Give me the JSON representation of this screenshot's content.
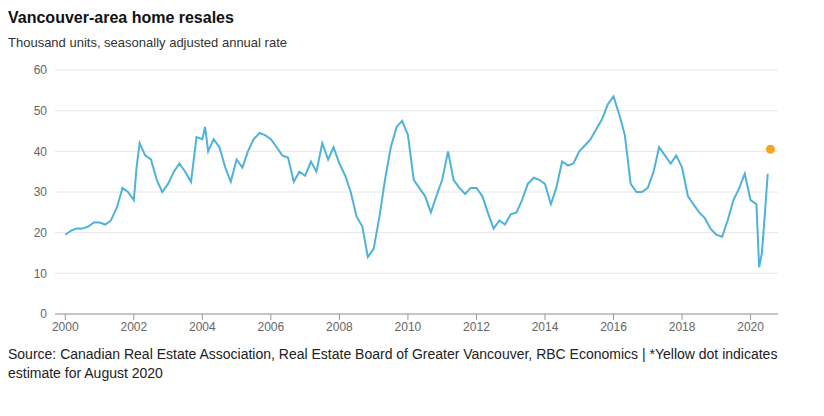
{
  "chart_data": {
    "type": "line",
    "title": "Vancouver-area home resales",
    "subtitle": "Thousand units, seasonally adjusted annual rate",
    "source": "Source: Canadian Real Estate Association, Real Estate Board of Greater Vancouver, RBC Economics | *Yellow dot indicates estimate for August 2020",
    "x": [
      2000.0,
      2000.17,
      2000.33,
      2000.5,
      2000.67,
      2000.83,
      2001.0,
      2001.17,
      2001.33,
      2001.5,
      2001.67,
      2001.83,
      2002.0,
      2002.08,
      2002.17,
      2002.33,
      2002.5,
      2002.67,
      2002.83,
      2003.0,
      2003.17,
      2003.33,
      2003.5,
      2003.67,
      2003.83,
      2004.0,
      2004.08,
      2004.17,
      2004.33,
      2004.5,
      2004.67,
      2004.83,
      2005.0,
      2005.17,
      2005.33,
      2005.5,
      2005.67,
      2005.83,
      2006.0,
      2006.17,
      2006.33,
      2006.5,
      2006.67,
      2006.83,
      2007.0,
      2007.17,
      2007.33,
      2007.5,
      2007.67,
      2007.83,
      2008.0,
      2008.17,
      2008.33,
      2008.5,
      2008.67,
      2008.83,
      2009.0,
      2009.17,
      2009.33,
      2009.5,
      2009.67,
      2009.83,
      2010.0,
      2010.17,
      2010.33,
      2010.5,
      2010.67,
      2010.83,
      2011.0,
      2011.17,
      2011.33,
      2011.5,
      2011.67,
      2011.83,
      2012.0,
      2012.17,
      2012.33,
      2012.5,
      2012.67,
      2012.83,
      2013.0,
      2013.17,
      2013.33,
      2013.5,
      2013.67,
      2013.83,
      2014.0,
      2014.17,
      2014.33,
      2014.5,
      2014.67,
      2014.83,
      2015.0,
      2015.17,
      2015.33,
      2015.5,
      2015.67,
      2015.83,
      2016.0,
      2016.17,
      2016.33,
      2016.5,
      2016.67,
      2016.83,
      2017.0,
      2017.17,
      2017.33,
      2017.5,
      2017.67,
      2017.83,
      2018.0,
      2018.17,
      2018.33,
      2018.5,
      2018.67,
      2018.83,
      2019.0,
      2019.17,
      2019.33,
      2019.5,
      2019.67,
      2019.83,
      2020.0,
      2020.17,
      2020.25,
      2020.33,
      2020.42,
      2020.5
    ],
    "values": [
      19.5,
      20.5,
      21,
      21,
      21.5,
      22.5,
      22.5,
      22,
      23,
      26,
      31,
      30,
      28,
      36,
      42,
      39,
      38,
      33,
      30,
      32,
      35,
      37,
      35,
      32.5,
      43.5,
      43,
      46,
      40,
      43,
      41,
      36,
      32.5,
      38,
      36,
      40,
      43,
      44.5,
      44,
      43,
      41,
      39,
      38.5,
      32.5,
      35,
      34,
      37.5,
      35,
      42,
      38,
      41,
      37,
      34,
      30,
      24,
      21.5,
      14,
      16,
      24,
      33,
      41,
      46,
      47.5,
      44,
      33,
      31,
      29,
      25,
      29,
      33,
      40,
      33,
      31,
      29.5,
      31,
      31,
      29,
      25,
      21,
      23,
      22,
      24.5,
      25,
      28,
      32,
      33.5,
      33,
      32,
      27,
      31,
      37.5,
      36.5,
      37,
      40,
      41.5,
      43,
      45.5,
      48,
      51.5,
      53.5,
      49,
      44,
      32,
      30,
      30,
      31,
      35,
      41,
      39,
      37,
      39,
      36,
      29,
      27,
      25,
      23.5,
      21,
      19.5,
      19,
      23,
      28,
      31,
      34.5,
      28,
      27,
      11.5,
      15,
      25,
      34.5
    ],
    "color": "#4fb3d9",
    "estimate": {
      "x": 2020.58,
      "y": 40.5,
      "color": "#f5a623",
      "marker": "circle"
    },
    "xlim": [
      1999.7,
      2020.8
    ],
    "xticks": [
      2000,
      2002,
      2004,
      2006,
      2008,
      2010,
      2012,
      2014,
      2016,
      2018,
      2020
    ],
    "ylim": [
      0,
      60
    ],
    "yticks": [
      0,
      10,
      20,
      30,
      40,
      50,
      60
    ],
    "grid": true
  }
}
